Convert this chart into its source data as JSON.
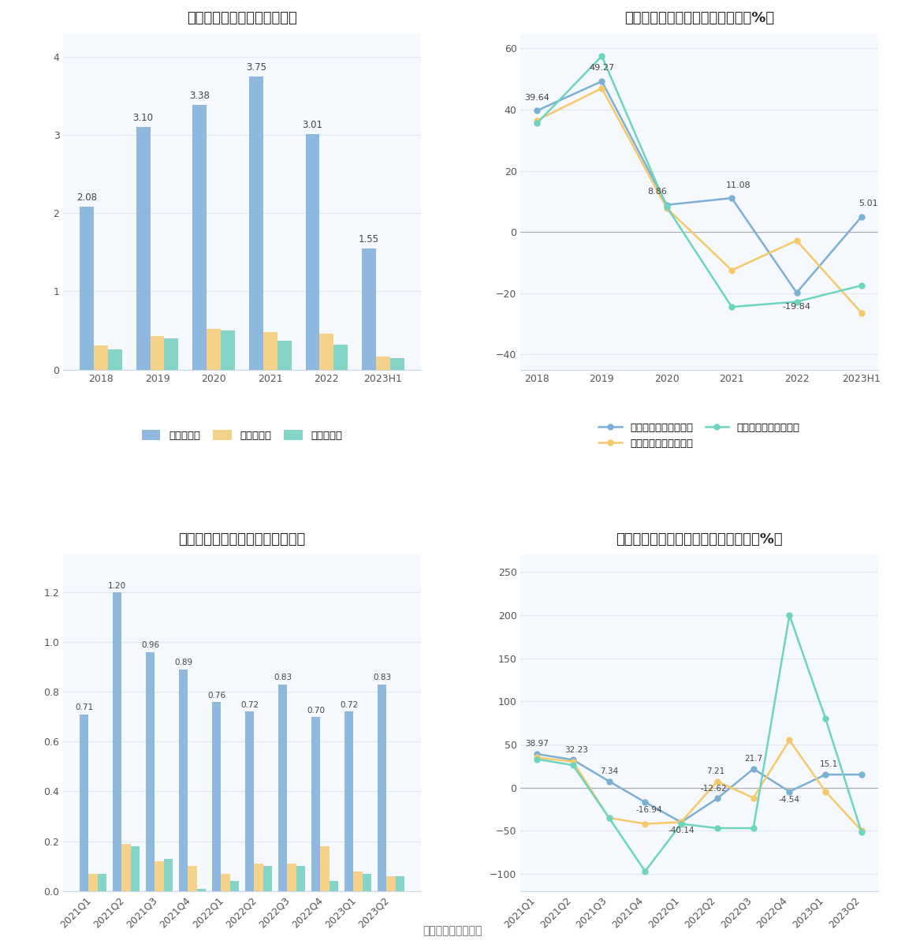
{
  "fig_bg": "#ffffff",
  "bar1_title": "历年营收、净利情况（亿元）",
  "bar1_categories": [
    "2018",
    "2019",
    "2020",
    "2021",
    "2022",
    "2023H1"
  ],
  "bar1_revenue": [
    2.08,
    3.1,
    3.38,
    3.75,
    3.01,
    1.55
  ],
  "bar1_net_profit": [
    0.31,
    0.43,
    0.52,
    0.48,
    0.46,
    0.17
  ],
  "bar1_deducted_profit": [
    0.26,
    0.4,
    0.5,
    0.37,
    0.32,
    0.15
  ],
  "bar1_revenue_color": "#8fb8de",
  "bar1_net_profit_color": "#f5d28a",
  "bar1_deducted_profit_color": "#85d4c8",
  "bar1_ylim": [
    0,
    4.3
  ],
  "bar1_yticks": [
    0,
    1,
    2,
    3,
    4
  ],
  "line1_title": "历年营收、净利同比增长率情况（%）",
  "line1_categories": [
    "2018",
    "2019",
    "2020",
    "2021",
    "2022",
    "2023H1"
  ],
  "line1_revenue_growth": [
    39.64,
    49.27,
    8.86,
    11.08,
    -19.84,
    5.01
  ],
  "line1_net_profit_growth": [
    36.5,
    47.0,
    7.8,
    -12.5,
    -2.8,
    -26.5
  ],
  "line1_deducted_growth": [
    35.5,
    57.5,
    8.2,
    -24.5,
    -22.8,
    -17.5
  ],
  "line1_revenue_color": "#7bafd4",
  "line1_net_profit_color": "#f5c96a",
  "line1_deducted_color": "#6dd4c0",
  "line1_ylim": [
    -45,
    65
  ],
  "line1_yticks": [
    -40,
    -20,
    0,
    20,
    40,
    60
  ],
  "bar2_title": "营收、净利季度变动情况（亿元）",
  "bar2_categories": [
    "2021Q1",
    "2021Q2",
    "2021Q3",
    "2021Q4",
    "2022Q1",
    "2022Q2",
    "2022Q3",
    "2022Q4",
    "2023Q1",
    "2023Q2"
  ],
  "bar2_revenue": [
    0.71,
    1.2,
    0.96,
    0.89,
    0.76,
    0.72,
    0.83,
    0.7,
    0.72,
    0.83
  ],
  "bar2_net_profit": [
    0.07,
    0.19,
    0.12,
    0.1,
    0.07,
    0.11,
    0.11,
    0.18,
    0.08,
    0.06
  ],
  "bar2_deducted_profit": [
    0.07,
    0.18,
    0.13,
    0.01,
    0.04,
    0.1,
    0.1,
    0.04,
    0.07,
    0.06
  ],
  "bar2_revenue_color": "#8fb8de",
  "bar2_net_profit_color": "#f5d28a",
  "bar2_deducted_profit_color": "#85d4c8",
  "bar2_ylim": [
    0,
    1.35
  ],
  "bar2_yticks": [
    0,
    0.2,
    0.4,
    0.6,
    0.8,
    1.0,
    1.2
  ],
  "line2_title": "营收、净利同比增长率季度变动情况（%）",
  "line2_categories": [
    "2021Q1",
    "2021Q2",
    "2021Q3",
    "2021Q4",
    "2022Q1",
    "2022Q2",
    "2022Q3",
    "2022Q4",
    "2023Q1",
    "2023Q2"
  ],
  "line2_revenue_growth": [
    38.97,
    32.23,
    7.34,
    -16.94,
    -40.14,
    -12.62,
    21.7,
    -4.54,
    15.1,
    15.1
  ],
  "line2_net_profit_growth": [
    35.0,
    30.0,
    -35.0,
    -42.0,
    -40.0,
    7.21,
    -12.0,
    55.0,
    -4.54,
    -50.0
  ],
  "line2_deducted_growth": [
    33.0,
    26.0,
    -35.0,
    -97.0,
    -42.0,
    -47.0,
    -47.0,
    200.0,
    80.0,
    -52.0
  ],
  "line2_revenue_color": "#7bafd4",
  "line2_net_profit_color": "#f5c96a",
  "line2_deducted_color": "#6dd4c0",
  "line2_ylim": [
    -120,
    270
  ],
  "line2_yticks": [
    -100,
    -50,
    0,
    50,
    100,
    150,
    200,
    250
  ],
  "legend_revenue": "营业总收入",
  "legend_net_profit": "归母净利润",
  "legend_deducted": "扣非净利润",
  "legend_revenue_growth": "营业总收入同比增长率",
  "legend_net_profit_growth": "归母净利润同比增长率",
  "legend_deducted_growth": "扣非净利润同比增长率",
  "source_text": "数据来源：恒生聚源",
  "grid_color": "#dde8f0",
  "ax_bg": "#f5f8fc"
}
